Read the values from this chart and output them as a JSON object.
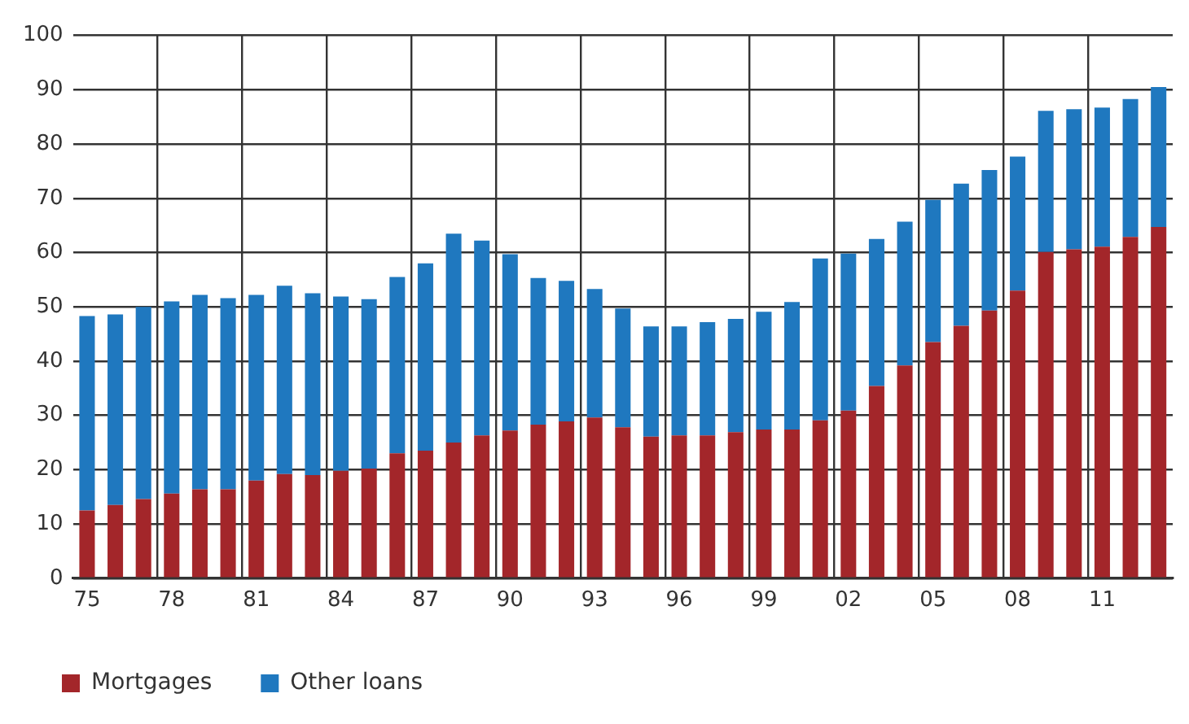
{
  "chart_data": {
    "type": "bar",
    "stacked": true,
    "categories": [
      "75",
      null,
      null,
      "78",
      null,
      null,
      "81",
      null,
      null,
      "84",
      null,
      null,
      "87",
      null,
      null,
      "90",
      null,
      null,
      "93",
      null,
      null,
      "96",
      null,
      null,
      "99",
      null,
      null,
      "02",
      null,
      null,
      "05",
      null,
      null,
      "08",
      null,
      null,
      "11",
      null,
      null
    ],
    "series": [
      {
        "name": "Mortgages",
        "color": "#a3262a",
        "values": [
          12.5,
          13.5,
          14.6,
          15.6,
          16.4,
          16.4,
          18,
          19.2,
          19,
          19.8,
          20.2,
          23,
          23.5,
          25,
          26.3,
          27.2,
          28.3,
          28.9,
          29.6,
          27.8,
          26.1,
          26.3,
          26.3,
          26.9,
          27.4,
          27.4,
          29.1,
          30.9,
          35.4,
          39.2,
          43.5,
          46.5,
          49.3,
          53,
          60.1,
          60.6,
          61.1,
          62.9,
          64.7
        ]
      },
      {
        "name": "Other loans",
        "color": "#1f78bf",
        "values": [
          35.8,
          35.1,
          35.4,
          35.4,
          35.8,
          35.2,
          34.2,
          34.7,
          33.5,
          32.1,
          31.2,
          32.5,
          34.5,
          38.5,
          35.9,
          32.5,
          27,
          25.9,
          23.7,
          21.9,
          20.3,
          20.1,
          20.9,
          20.9,
          21.7,
          23.5,
          29.8,
          28.9,
          27.1,
          26.5,
          26.2,
          26.2,
          25.9,
          24.7,
          26,
          25.8,
          25.6,
          25.4,
          25.8
        ]
      }
    ],
    "ylim": [
      0,
      100
    ],
    "yticks": [
      0,
      10,
      20,
      30,
      40,
      50,
      60,
      70,
      80,
      90,
      100
    ],
    "grid": true,
    "legend": "bottom left"
  }
}
